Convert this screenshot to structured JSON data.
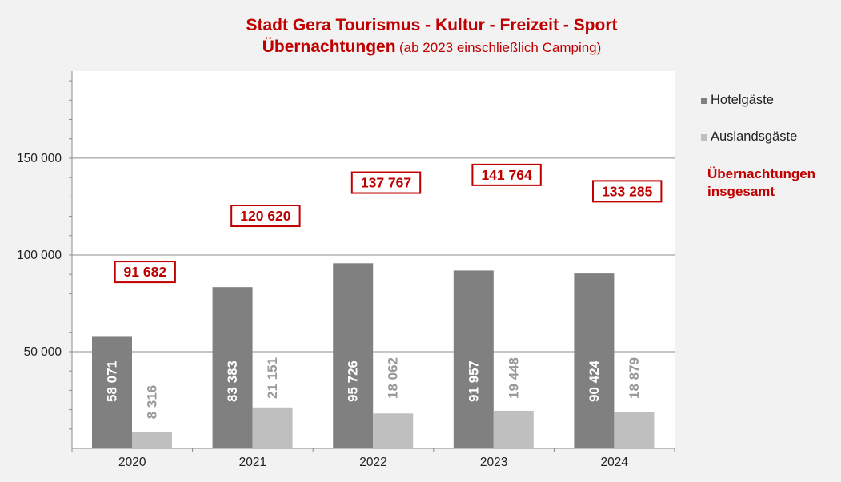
{
  "chart_data": {
    "type": "bar",
    "title": "Stadt Gera Tourismus - Kultur - Freizeit - Sport",
    "subtitle_main": "Übernachtungen",
    "subtitle_note": "(ab 2023 einschließlich Camping)",
    "categories": [
      "2020",
      "2021",
      "2022",
      "2023",
      "2024"
    ],
    "series": [
      {
        "name": "Hotelgäste",
        "color": "#808080",
        "values": [
          58071,
          83383,
          95726,
          91957,
          90424
        ],
        "labels": [
          "58 071",
          "83 383",
          "95 726",
          "91 957",
          "90 424"
        ]
      },
      {
        "name": "Auslandsgäste",
        "color": "#bfbfbf",
        "values": [
          8316,
          21151,
          18062,
          19448,
          18879
        ],
        "labels": [
          "8 316",
          "21 151",
          "18 062",
          "19 448",
          "18 879"
        ]
      }
    ],
    "totals": {
      "name": "Übernachtungen insgesamt",
      "name_lines": [
        "Übernachtungen",
        "insgesamt"
      ],
      "color": "#c00000",
      "values": [
        91682,
        120620,
        137767,
        141764,
        133285
      ],
      "labels": [
        "91 682",
        "120 620",
        "137 767",
        "141 764",
        "133 285"
      ]
    },
    "y_ticks": [
      {
        "value": 50000,
        "label": "50 000"
      },
      {
        "value": 100000,
        "label": "100 000"
      },
      {
        "value": 150000,
        "label": "150 000"
      }
    ],
    "ylim": [
      0,
      195000
    ],
    "minor_tick_step": 10000,
    "grid": true,
    "legend_position": "right"
  }
}
